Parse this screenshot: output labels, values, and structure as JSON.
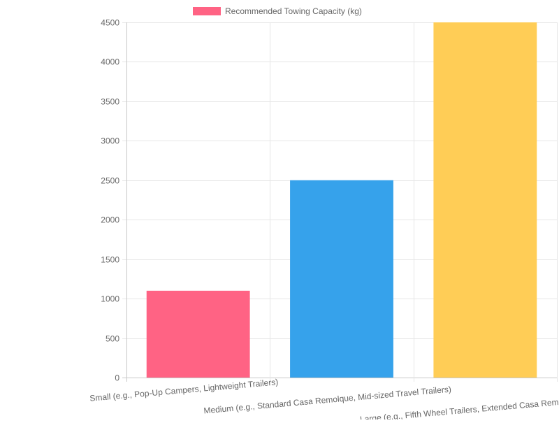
{
  "chart_data": {
    "type": "bar",
    "title": "",
    "xlabel": "",
    "ylabel": "",
    "categories": [
      "Small (e.g., Pop-Up Campers, Lightweight Trailers)",
      "Medium (e.g., Standard Casa Remolque, Mid-sized Travel Trailers)",
      "Large (e.g., Fifth Wheel Trailers, Extended Casa Remolque)"
    ],
    "series": [
      {
        "name": "Recommended Towing Capacity (kg)",
        "values": [
          1100,
          2500,
          4500
        ],
        "colors": [
          "#ff6384",
          "#36a2eb",
          "#ffcd56"
        ]
      }
    ],
    "ylim": [
      0,
      4500
    ],
    "yticks": [
      0,
      500,
      1000,
      1500,
      2000,
      2500,
      3000,
      3500,
      4000,
      4500
    ],
    "grid": true,
    "legend_position": "top",
    "x_tick_rotation_deg": -5
  }
}
